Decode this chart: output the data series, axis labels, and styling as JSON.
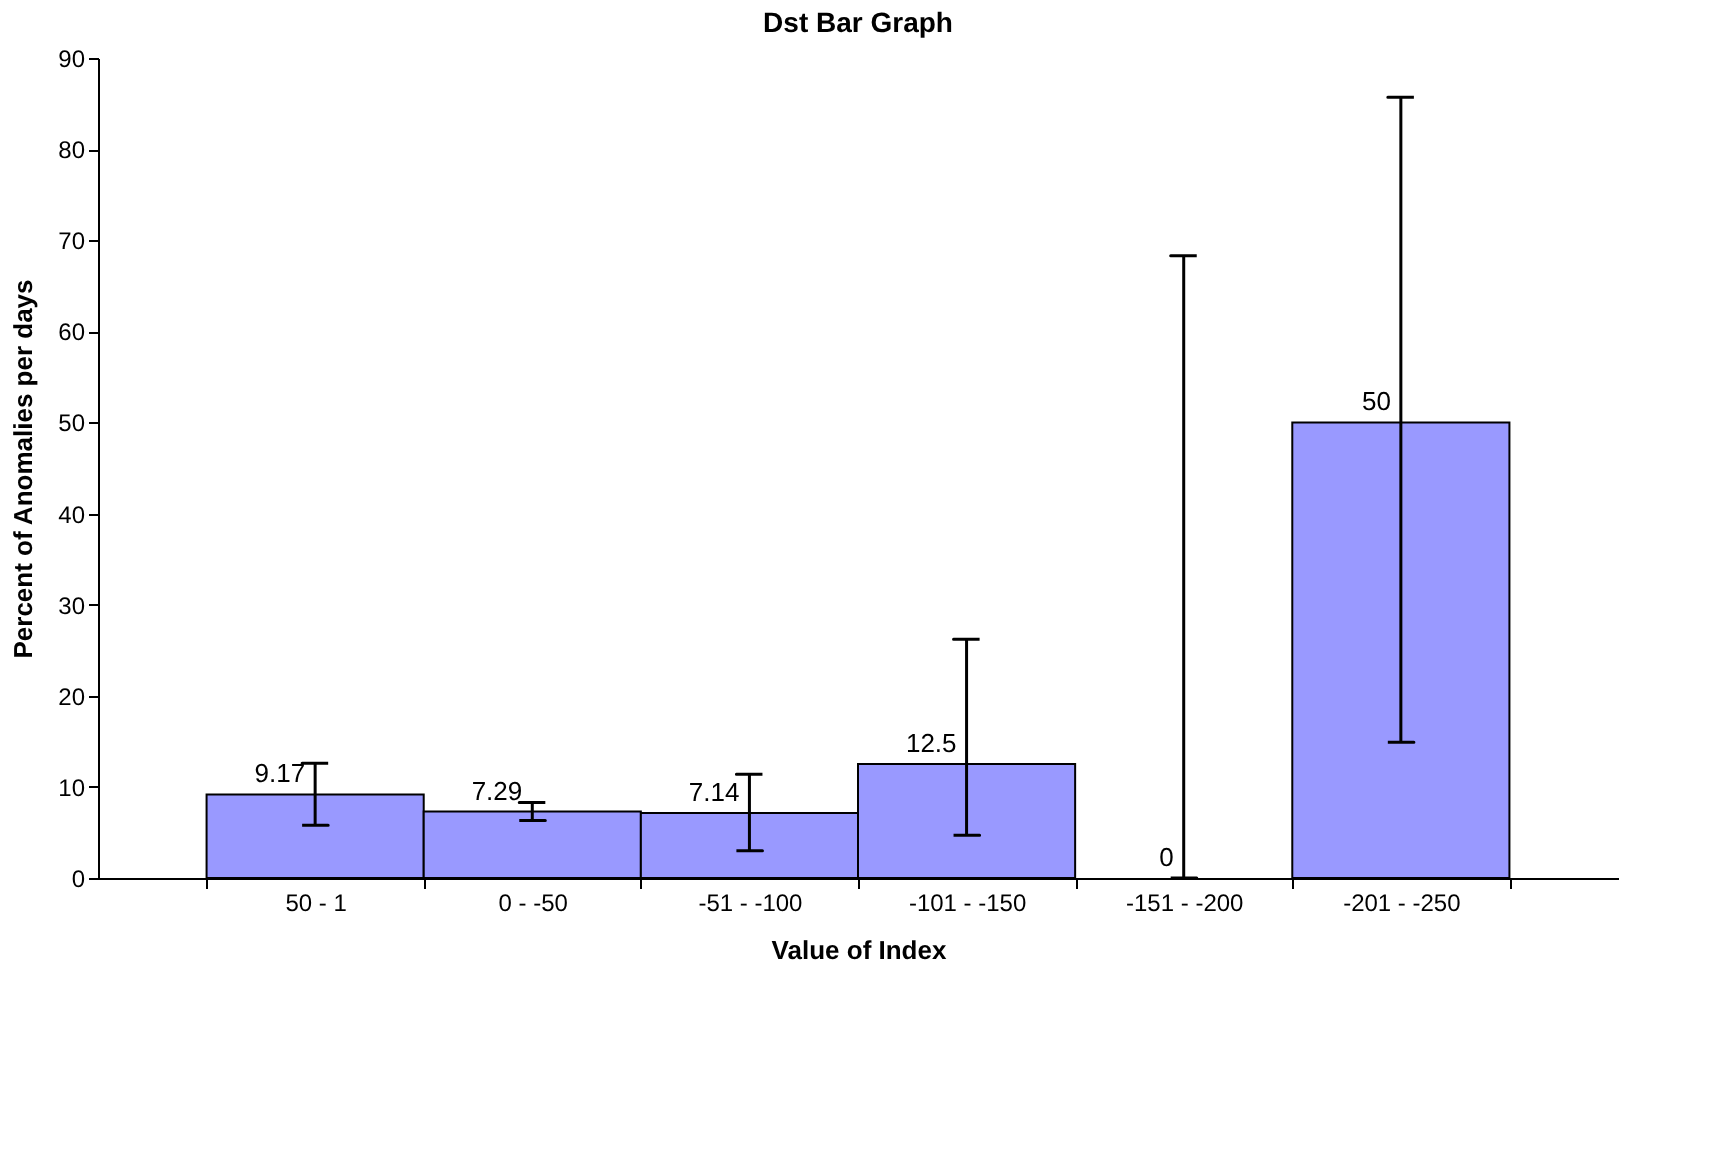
{
  "chart_data": {
    "type": "bar",
    "title": "Dst Bar Graph",
    "xlabel": "Value of Index",
    "ylabel": "Percent of Anomalies per days",
    "categories": [
      "50 - 1",
      "0 - -50",
      "-51 - -100",
      "-101 - -150",
      "-151 - -200",
      "-201 - -250"
    ],
    "values": [
      9.17,
      7.29,
      7.14,
      12.5,
      0,
      50
    ],
    "errors": [
      [
        5.8,
        12.6
      ],
      [
        6.3,
        8.3
      ],
      [
        3.0,
        11.4
      ],
      [
        4.7,
        26.2
      ],
      [
        0,
        68.3
      ],
      [
        14.9,
        85.7
      ]
    ],
    "color": "#9999ff",
    "data_labels": true,
    "grid": false,
    "ylim": [
      0,
      90
    ],
    "yticks": [
      0,
      10,
      20,
      30,
      40,
      50,
      60,
      70,
      80,
      90
    ]
  }
}
